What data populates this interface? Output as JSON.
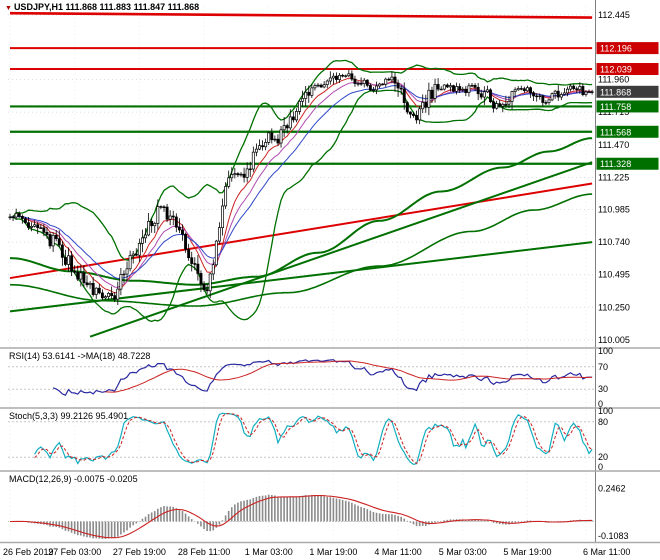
{
  "window": {
    "title": "USDJPY,H1 chart",
    "bg": "#ffffff"
  },
  "header": {
    "symbol": "USDJPY,H1",
    "ohlc_text": "111.868 111.883 111.847 111.868",
    "marker_icon": "symbol-marker-icon"
  },
  "chart_data": {
    "type": "candlestick-with-indicators",
    "symbol": "USDJPY",
    "timeframe": "H1",
    "current_bar": {
      "open": 111.868,
      "high": 111.883,
      "low": 111.847,
      "close": 111.868
    },
    "bars_count": 190,
    "x_axis": {
      "labels": [
        "26 Feb 2019",
        "27 Feb 03:00",
        "27 Feb 19:00",
        "28 Feb 11:00",
        "1 Mar 03:00",
        "1 Mar 19:00",
        "4 Mar 11:00",
        "5 Mar 03:00",
        "5 Mar 19:00",
        "6 Mar 11:00"
      ],
      "bar_positions": [
        0,
        21,
        42,
        63,
        84,
        105,
        126,
        147,
        168,
        187
      ]
    },
    "main_panel": {
      "y_ticks": [
        112.445,
        111.96,
        111.715,
        111.47,
        111.225,
        110.985,
        110.74,
        110.495,
        110.25,
        110.005
      ],
      "y_range": [
        109.96,
        112.497
      ],
      "badges": [
        {
          "value": "112.196",
          "price": 112.196,
          "bg": "#cc0000",
          "kind": "resistance"
        },
        {
          "value": "112.039",
          "price": 112.039,
          "bg": "#cc0000",
          "kind": "resistance"
        },
        {
          "value": "111.868",
          "price": 111.868,
          "bg": "#3c3c3c",
          "kind": "current-price"
        },
        {
          "value": "111.758",
          "price": 111.758,
          "bg": "#007000",
          "kind": "support"
        },
        {
          "value": "111.568",
          "price": 111.568,
          "bg": "#007000",
          "kind": "support"
        },
        {
          "value": "111.328",
          "price": 111.328,
          "bg": "#007000",
          "kind": "support"
        }
      ],
      "trendlines": [
        {
          "b1": 0,
          "p1": 112.458,
          "b2": 189,
          "p2": 112.425,
          "color": "#dd0000",
          "w": 2.6
        },
        {
          "b1": 0,
          "p1": 112.196,
          "b2": 189,
          "p2": 112.196,
          "color": "#dd0000",
          "w": 2
        },
        {
          "b1": 0,
          "p1": 112.039,
          "b2": 189,
          "p2": 112.039,
          "color": "#dd0000",
          "w": 2
        },
        {
          "b1": 0,
          "p1": 111.758,
          "b2": 189,
          "p2": 111.758,
          "color": "#007000",
          "w": 2.2
        },
        {
          "b1": 0,
          "p1": 111.568,
          "b2": 189,
          "p2": 111.568,
          "color": "#007000",
          "w": 2.2
        },
        {
          "b1": 0,
          "p1": 111.328,
          "b2": 189,
          "p2": 111.328,
          "color": "#007000",
          "w": 2.2
        },
        {
          "b1": 0,
          "p1": 110.47,
          "b2": 189,
          "p2": 111.18,
          "color": "#dd0000",
          "w": 2
        },
        {
          "b1": 26,
          "p1": 110.03,
          "b2": 189,
          "p2": 111.34,
          "color": "#007000",
          "w": 2
        },
        {
          "b1": 0,
          "p1": 110.22,
          "b2": 189,
          "p2": 110.74,
          "color": "#007000",
          "w": 2
        }
      ],
      "price_path_anchors": [
        [
          0,
          110.95
        ],
        [
          5,
          110.9
        ],
        [
          10,
          110.82
        ],
        [
          15,
          110.72
        ],
        [
          20,
          110.55
        ],
        [
          24,
          110.45
        ],
        [
          28,
          110.37
        ],
        [
          31,
          110.33
        ],
        [
          34,
          110.36
        ],
        [
          38,
          110.55
        ],
        [
          42,
          110.72
        ],
        [
          46,
          110.9
        ],
        [
          49,
          111.0
        ],
        [
          52,
          110.92
        ],
        [
          55,
          110.8
        ],
        [
          58,
          110.68
        ],
        [
          61,
          110.5
        ],
        [
          64,
          110.37
        ],
        [
          66,
          110.55
        ],
        [
          68,
          110.88
        ],
        [
          70,
          111.12
        ],
        [
          73,
          111.28
        ],
        [
          76,
          111.22
        ],
        [
          79,
          111.38
        ],
        [
          82,
          111.5
        ],
        [
          84,
          111.55
        ],
        [
          87,
          111.48
        ],
        [
          90,
          111.62
        ],
        [
          93,
          111.75
        ],
        [
          96,
          111.86
        ],
        [
          99,
          111.92
        ],
        [
          102,
          111.9
        ],
        [
          105,
          111.97
        ],
        [
          108,
          112.0
        ],
        [
          111,
          111.99
        ],
        [
          114,
          111.93
        ],
        [
          117,
          111.89
        ],
        [
          120,
          111.93
        ],
        [
          123,
          111.96
        ],
        [
          126,
          111.89
        ],
        [
          129,
          111.73
        ],
        [
          132,
          111.68
        ],
        [
          135,
          111.8
        ],
        [
          138,
          111.88
        ],
        [
          141,
          111.92
        ],
        [
          144,
          111.9
        ],
        [
          147,
          111.87
        ],
        [
          150,
          111.92
        ],
        [
          153,
          111.88
        ],
        [
          156,
          111.8
        ],
        [
          159,
          111.76
        ],
        [
          162,
          111.84
        ],
        [
          165,
          111.9
        ],
        [
          168,
          111.87
        ],
        [
          171,
          111.82
        ],
        [
          174,
          111.78
        ],
        [
          177,
          111.83
        ],
        [
          180,
          111.87
        ],
        [
          183,
          111.9
        ],
        [
          186,
          111.87
        ],
        [
          189,
          111.868
        ]
      ],
      "ma_slow_anchors": [
        [
          0,
          110.62
        ],
        [
          20,
          110.52
        ],
        [
          40,
          110.45
        ],
        [
          60,
          110.42
        ],
        [
          80,
          110.48
        ],
        [
          100,
          110.66
        ],
        [
          120,
          110.9
        ],
        [
          140,
          111.12
        ],
        [
          160,
          111.3
        ],
        [
          175,
          111.42
        ],
        [
          189,
          111.52
        ]
      ],
      "ma_slow2_anchors": [
        [
          0,
          110.42
        ],
        [
          30,
          110.3
        ],
        [
          60,
          110.26
        ],
        [
          90,
          110.36
        ],
        [
          120,
          110.56
        ],
        [
          150,
          110.82
        ],
        [
          170,
          110.98
        ],
        [
          189,
          111.1
        ]
      ],
      "overlays": {
        "bollinger": {
          "period": 20,
          "deviation": 2,
          "color": "#007000"
        },
        "emas": [
          {
            "period": 8,
            "color": "#cc2222"
          },
          {
            "period": 13,
            "color": "#b04ab0"
          },
          {
            "period": 21,
            "color": "#3048c8"
          }
        ],
        "slow_ma_color": "#007000"
      },
      "candle_colors": {
        "bull_fill": "#ffffff",
        "bear_fill": "#000000",
        "border": "#000000"
      }
    },
    "rsi_panel": {
      "label": "RSI(14) 53.6141 ->MA(18) 48.7228",
      "period": 14,
      "ma_period": 18,
      "last": 53.6141,
      "ma_last": 48.7228,
      "y_ticks": [
        100,
        70,
        30,
        0
      ],
      "level_lines": [
        70,
        30
      ],
      "line_color": "#2828a0",
      "ma_color": "#cc2222"
    },
    "stoch_panel": {
      "label": "Stoch(5,3,3) 99.2126 95.4901",
      "params": [
        5,
        3,
        3
      ],
      "last_k": 99.2126,
      "last_d": 95.4901,
      "y_ticks": [
        100,
        80,
        20,
        0
      ],
      "level_lines": [
        80,
        20
      ],
      "k_color": "#12aec0",
      "d_color": "#cc2222"
    },
    "macd_panel": {
      "label": "MACD(12,26,9) -0.0075 -0.0205",
      "params": [
        12,
        26,
        9
      ],
      "last_main": -0.0075,
      "last_signal": -0.0205,
      "y_ticks": [
        0.2462,
        -0.1083
      ],
      "value_range": [
        -0.145,
        0.36
      ],
      "hist_color": "#8a8a8a",
      "signal_color": "#cc2222"
    },
    "grid": {
      "h_dash_color": "#dcdcdc",
      "v_dash_color": "#ececec",
      "level_dash_color": "#c8c8c8",
      "separator_color": "#aaaaaa",
      "axis_line_color": "#808080"
    }
  }
}
